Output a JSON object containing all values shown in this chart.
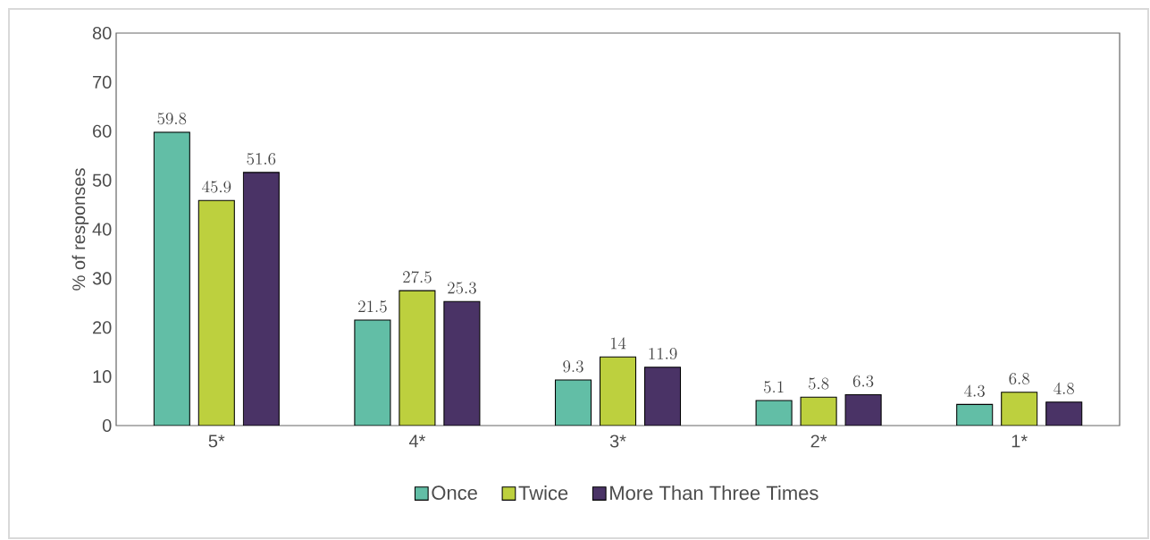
{
  "chart_data": {
    "type": "bar",
    "ylabel": "% of responses",
    "categories": [
      "5*",
      "4*",
      "3*",
      "2*",
      "1*"
    ],
    "series": [
      {
        "name": "Once",
        "color": "#62bea6",
        "values": [
          59.8,
          21.5,
          9.3,
          5.1,
          4.3
        ]
      },
      {
        "name": "Twice",
        "color": "#bdd03e",
        "values": [
          45.9,
          27.5,
          14,
          5.8,
          6.8
        ]
      },
      {
        "name": "More Than Three Times",
        "color": "#4a3366",
        "values": [
          51.6,
          25.3,
          11.9,
          6.3,
          4.8
        ]
      }
    ],
    "ylim": [
      0,
      80
    ],
    "yticks": [
      0,
      10,
      20,
      30,
      40,
      50,
      60,
      70,
      80
    ],
    "data_labels": true,
    "legend": "bottom",
    "grid": false
  }
}
